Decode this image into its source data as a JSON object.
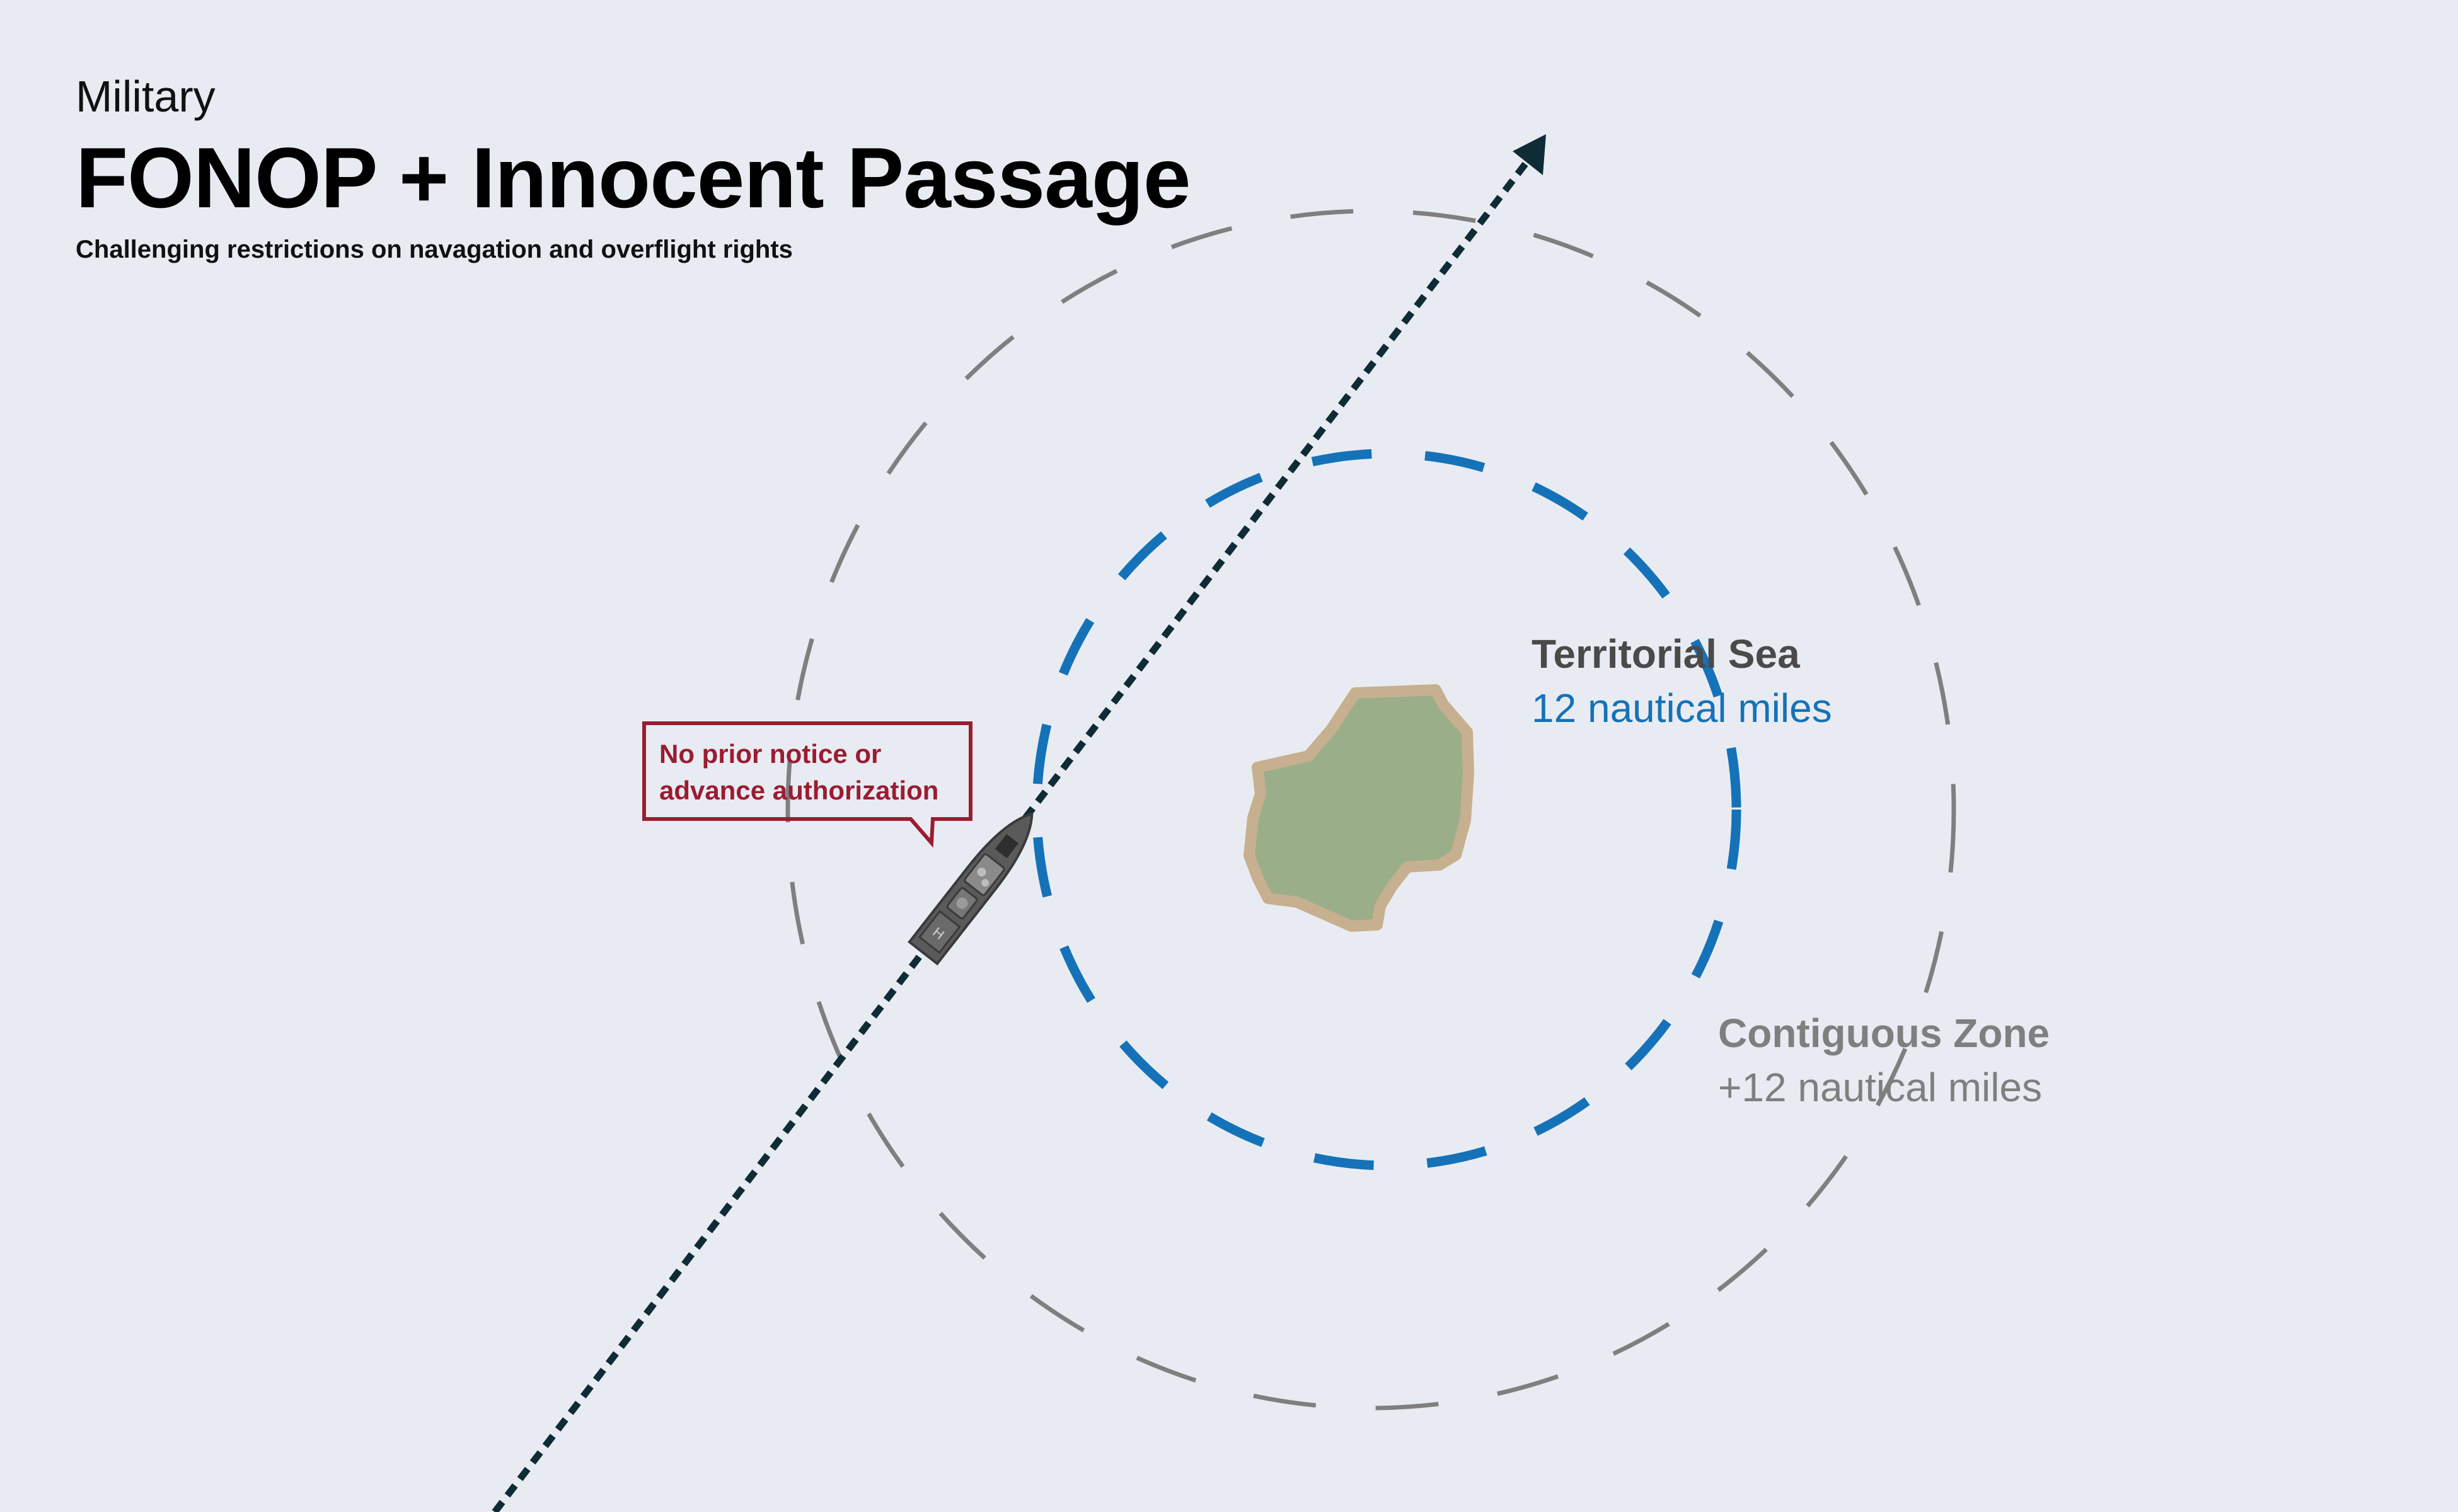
{
  "header": {
    "kicker": "Military",
    "title": "FONOP + Innocent Passage",
    "subtitle": "Challenging restrictions on navagation and overflight rights"
  },
  "zones": {
    "territorial_sea": {
      "name": "Territorial Sea",
      "distance": "12 nautical miles",
      "color": "#1572b8"
    },
    "contiguous_zone": {
      "name": "Contiguous Zone",
      "distance": "+12 nautical miles",
      "color": "#7f7f7f"
    }
  },
  "callout": {
    "line1": "No prior notice or",
    "line2": "advance authorization",
    "color": "#9b1c31"
  },
  "colors": {
    "background": "#e8ecf2",
    "island_fill": "#9aae8a",
    "island_outline": "#c7b08f",
    "route": "#0f2b36",
    "ship": "#5a5a5a"
  },
  "icons": {
    "ship": "warship-icon",
    "arrow": "arrow-head-icon",
    "island": "island-icon"
  }
}
